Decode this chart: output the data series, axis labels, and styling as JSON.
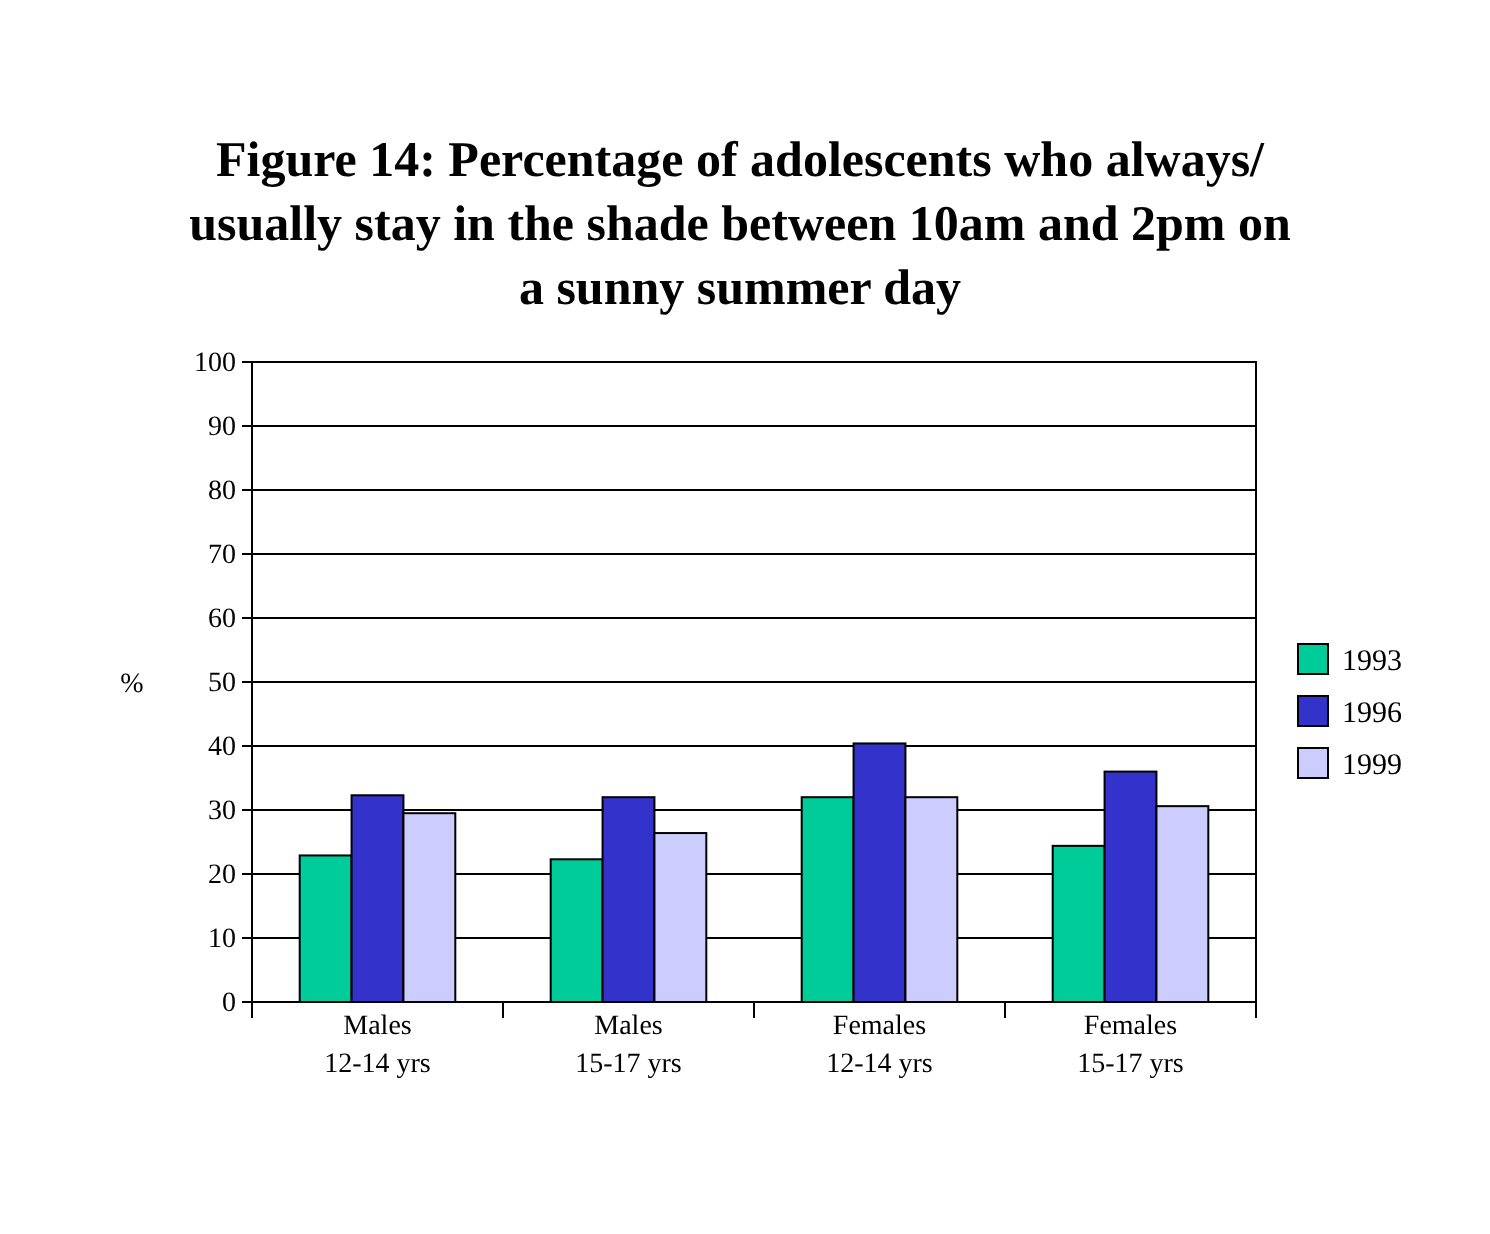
{
  "chart_data": {
    "type": "bar",
    "title": "Figure 14: Percentage of adolescents who always/ usually stay in the shade between 10am and 2pm on a sunny summer day",
    "ylabel": "%",
    "categories": [
      "Males\n12-14 yrs",
      "Males\n15-17 yrs",
      "Females\n12-14 yrs",
      "Females\n15-17 yrs"
    ],
    "series": [
      {
        "name": "1993",
        "color": "#00cc99",
        "values": [
          22.9,
          22.3,
          32.0,
          24.4
        ]
      },
      {
        "name": "1996",
        "color": "#3333cc",
        "values": [
          32.3,
          32.0,
          40.4,
          36.0
        ]
      },
      {
        "name": "1999",
        "color": "#ccccff",
        "values": [
          29.5,
          26.4,
          32.0,
          30.6
        ]
      }
    ],
    "ylim": [
      0,
      100
    ],
    "yticks": [
      0,
      10,
      20,
      30,
      40,
      50,
      60,
      70,
      80,
      90,
      100
    ],
    "grid": "y",
    "legend": "right"
  }
}
